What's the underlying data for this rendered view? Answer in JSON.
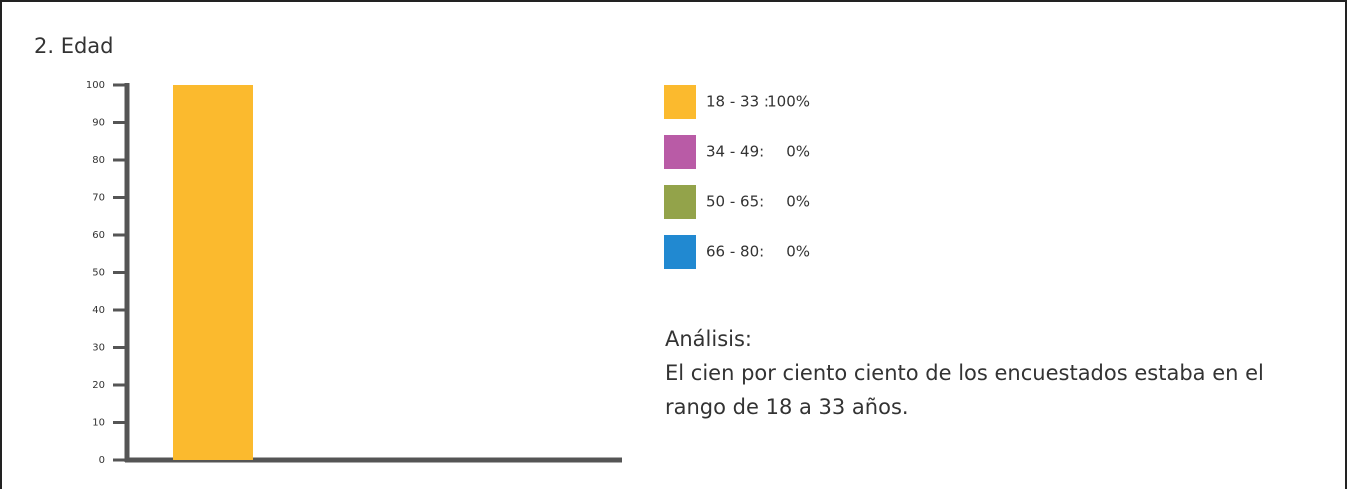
{
  "chart_data": {
    "type": "bar",
    "title": "2. Edad",
    "categories": [
      "18 - 33 :",
      "34 - 49:",
      "50 - 65:",
      "66 - 80:"
    ],
    "values": [
      100,
      0,
      0,
      0
    ],
    "value_labels": [
      "100%",
      "0%",
      "0%",
      "0%"
    ],
    "colors": [
      "#fbba2e",
      "#b95ba6",
      "#93a34a",
      "#2189d1"
    ],
    "ylim": [
      0,
      100
    ],
    "yticks": [
      0,
      10,
      20,
      30,
      40,
      50,
      60,
      70,
      80,
      90,
      100
    ],
    "analysis_title": "Análisis:",
    "analysis_text": "El cien por ciento ciento de los encuestados estaba en el rango de 18 a 33 años."
  }
}
